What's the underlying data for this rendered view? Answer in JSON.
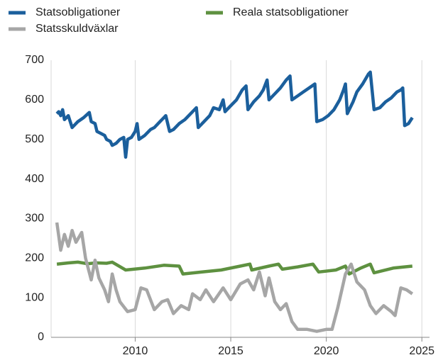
{
  "chart_data": {
    "type": "line",
    "xlim": [
      2005.6,
      2025.4
    ],
    "xticks": [
      2010,
      2015,
      2020,
      2025
    ],
    "ylim": [
      0,
      700
    ],
    "yticks": [
      0,
      100,
      200,
      300,
      400,
      500,
      600,
      700
    ],
    "grid": "x",
    "series": [
      {
        "name": "Statsobligationer",
        "color": "#1b5f9c",
        "x": [
          2005.9,
          2006.0,
          2006.1,
          2006.2,
          2006.3,
          2006.5,
          2006.6,
          2006.7,
          2007.0,
          2007.3,
          2007.6,
          2007.7,
          2007.9,
          2008.0,
          2008.2,
          2008.4,
          2008.5,
          2008.7,
          2008.8,
          2009.0,
          2009.2,
          2009.4,
          2009.5,
          2009.6,
          2009.8,
          2010.0,
          2010.1,
          2010.2,
          2010.5,
          2010.8,
          2011.0,
          2011.3,
          2011.5,
          2011.6,
          2011.8,
          2012.0,
          2012.3,
          2012.6,
          2012.9,
          2013.2,
          2013.3,
          2013.6,
          2013.9,
          2014.1,
          2014.4,
          2014.6,
          2014.7,
          2015.0,
          2015.3,
          2015.6,
          2015.8,
          2015.9,
          2016.2,
          2016.5,
          2016.7,
          2016.9,
          2017.0,
          2017.3,
          2017.6,
          2017.9,
          2018.1,
          2018.2,
          2018.5,
          2018.8,
          2019.1,
          2019.4,
          2019.5,
          2019.8,
          2020.1,
          2020.4,
          2020.7,
          2020.9,
          2021.0,
          2021.1,
          2021.4,
          2021.6,
          2021.9,
          2022.2,
          2022.3,
          2022.5,
          2022.8,
          2023.1,
          2023.4,
          2023.7,
          2023.9,
          2024.0,
          2024.1,
          2024.3,
          2024.5
        ],
        "values": [
          565,
          570,
          560,
          575,
          550,
          560,
          545,
          530,
          545,
          555,
          568,
          545,
          540,
          520,
          515,
          510,
          500,
          495,
          485,
          490,
          500,
          505,
          455,
          500,
          505,
          520,
          540,
          500,
          510,
          525,
          530,
          545,
          555,
          560,
          520,
          525,
          540,
          550,
          565,
          580,
          530,
          545,
          560,
          580,
          575,
          600,
          570,
          585,
          600,
          625,
          635,
          575,
          595,
          610,
          625,
          650,
          600,
          615,
          630,
          650,
          660,
          600,
          610,
          620,
          630,
          640,
          545,
          550,
          560,
          575,
          600,
          625,
          640,
          565,
          595,
          620,
          640,
          665,
          670,
          575,
          580,
          595,
          605,
          620,
          625,
          630,
          535,
          540,
          555
        ]
      },
      {
        "name": "Reala statsobligationer",
        "color": "#5e9140",
        "x": [
          2005.9,
          2006.5,
          2007.0,
          2007.5,
          2008.0,
          2008.5,
          2008.8,
          2009.5,
          2010.5,
          2011.5,
          2012.3,
          2012.5,
          2013.5,
          2014.5,
          2015.5,
          2016.0,
          2016.1,
          2017.0,
          2017.5,
          2017.7,
          2018.5,
          2019.3,
          2019.6,
          2020.5,
          2021.0,
          2021.2,
          2021.8,
          2022.3,
          2022.5,
          2023.5,
          2024.5
        ],
        "values": [
          185,
          188,
          190,
          186,
          188,
          187,
          190,
          170,
          175,
          182,
          180,
          160,
          165,
          170,
          180,
          185,
          170,
          180,
          185,
          172,
          178,
          185,
          165,
          170,
          180,
          160,
          175,
          185,
          163,
          175,
          180
        ]
      },
      {
        "name": "Statsskuldväxlar",
        "color": "#a6a6a6",
        "x": [
          2005.9,
          2006.1,
          2006.3,
          2006.5,
          2006.7,
          2006.9,
          2007.2,
          2007.4,
          2007.7,
          2007.9,
          2008.1,
          2008.4,
          2008.6,
          2008.8,
          2009.0,
          2009.2,
          2009.6,
          2010.0,
          2010.3,
          2010.6,
          2011.0,
          2011.4,
          2011.7,
          2012.0,
          2012.4,
          2012.8,
          2013.0,
          2013.4,
          2013.7,
          2014.1,
          2014.6,
          2015.0,
          2015.5,
          2015.9,
          2016.2,
          2016.5,
          2016.8,
          2017.0,
          2017.3,
          2017.6,
          2017.9,
          2018.2,
          2018.5,
          2019.0,
          2019.5,
          2020.0,
          2020.3,
          2020.6,
          2021.0,
          2021.3,
          2021.6,
          2022.0,
          2022.3,
          2022.6,
          2023.0,
          2023.4,
          2023.6,
          2023.9,
          2024.2,
          2024.5
        ],
        "values": [
          290,
          220,
          260,
          230,
          270,
          240,
          265,
          200,
          145,
          195,
          150,
          120,
          90,
          160,
          120,
          90,
          65,
          70,
          125,
          120,
          70,
          90,
          95,
          60,
          80,
          70,
          110,
          95,
          120,
          90,
          125,
          95,
          135,
          145,
          120,
          165,
          105,
          150,
          90,
          70,
          85,
          40,
          20,
          20,
          15,
          20,
          20,
          75,
          160,
          185,
          140,
          120,
          80,
          60,
          80,
          65,
          55,
          125,
          120,
          110
        ]
      }
    ]
  }
}
